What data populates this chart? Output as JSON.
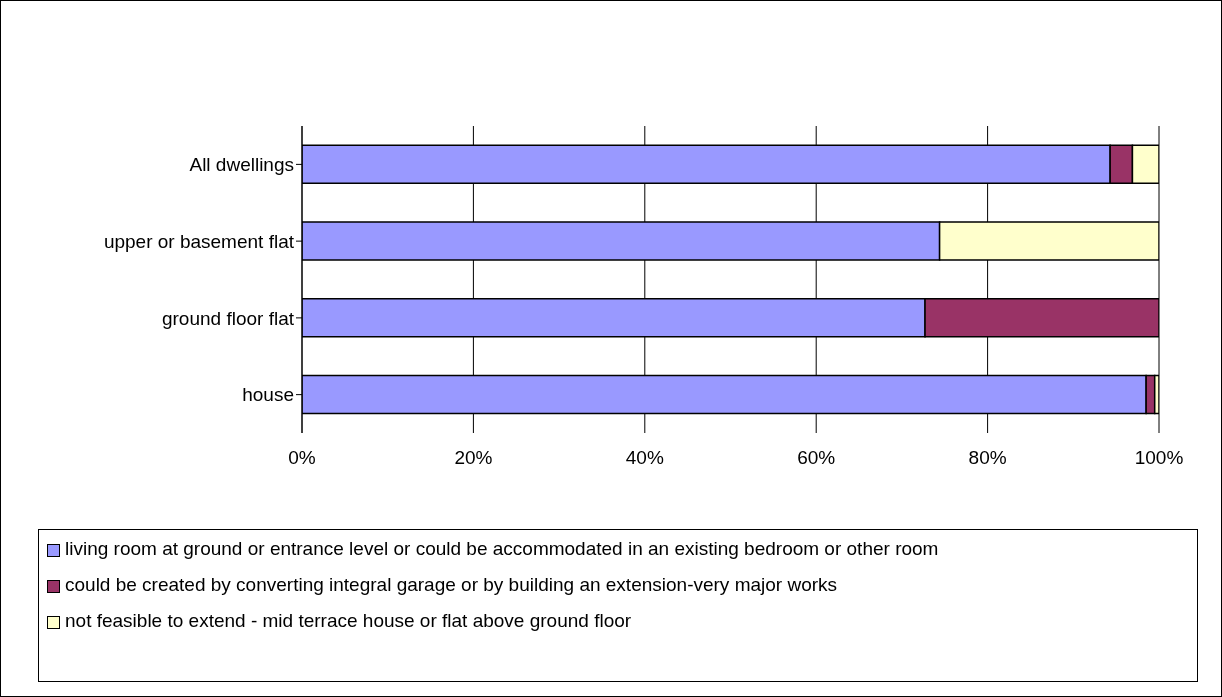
{
  "chart_data": {
    "type": "bar",
    "orientation": "horizontal",
    "stacked": true,
    "categories": [
      "All dwellings",
      "upper or basement flat",
      "ground floor flat",
      "house"
    ],
    "series": [
      {
        "name": "living room at ground or entrance level or could be accommodated in an existing bedroom or other room",
        "color": "#9999ff",
        "values": [
          94.3,
          74.4,
          72.7,
          98.5
        ]
      },
      {
        "name": "could be created by converting integral garage or by building an extension-very major works",
        "color": "#993366",
        "values": [
          2.6,
          0,
          27.3,
          1.0
        ]
      },
      {
        "name": "not feasible to extend - mid terrace house or flat above ground floor",
        "color": "#ffffcc",
        "values": [
          3.1,
          25.6,
          0,
          0.5
        ]
      }
    ],
    "xlim": [
      0,
      100
    ],
    "xticks": [
      {
        "value": 0,
        "label": "0%"
      },
      {
        "value": 20,
        "label": "20%"
      },
      {
        "value": 40,
        "label": "40%"
      },
      {
        "value": 60,
        "label": "60%"
      },
      {
        "value": 80,
        "label": "80%"
      },
      {
        "value": 100,
        "label": "100%"
      }
    ],
    "grid": "x",
    "legend": "bottom"
  }
}
